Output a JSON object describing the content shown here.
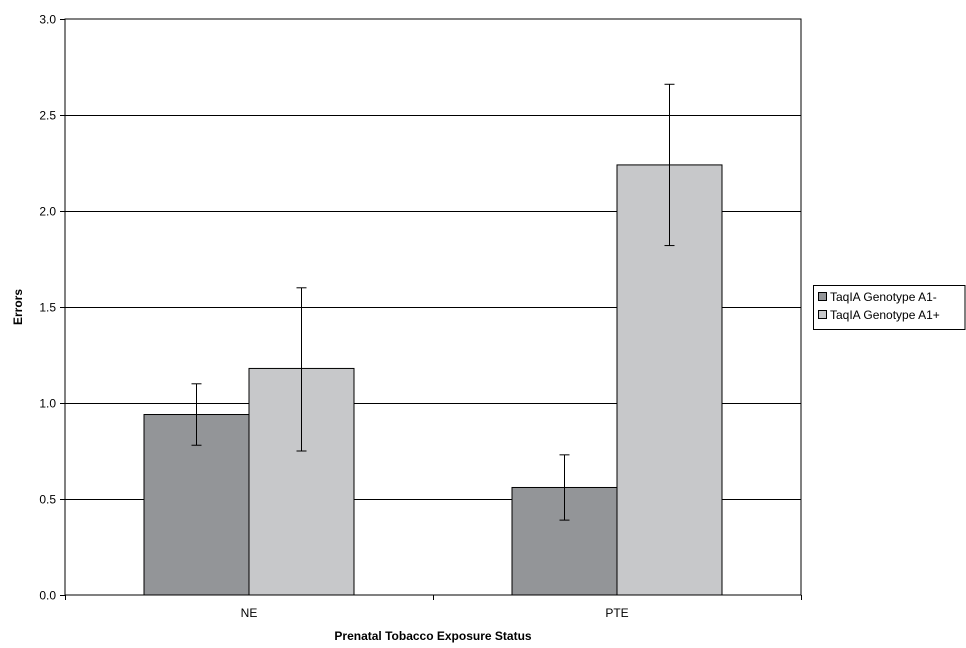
{
  "chart_data": {
    "type": "bar",
    "title": "",
    "xlabel": "Prenatal Tobacco Exposure Status",
    "ylabel": "Errors",
    "categories": [
      "NE",
      "PTE"
    ],
    "ylim": [
      0,
      3.0
    ],
    "yticks": [
      "0.0",
      "0.5",
      "1.0",
      "1.5",
      "2.0",
      "2.5",
      "3.0"
    ],
    "grid": true,
    "legend_position": "right",
    "series": [
      {
        "name": "TaqIA Genotype A1-",
        "color": "#939598",
        "values": [
          0.94,
          0.56
        ],
        "error_low": [
          0.78,
          0.39
        ],
        "error_high": [
          1.1,
          0.73
        ]
      },
      {
        "name": "TaqIA Genotype A1+",
        "color": "#c7c8ca",
        "values": [
          1.18,
          2.24
        ],
        "error_low": [
          0.75,
          1.82
        ],
        "error_high": [
          1.6,
          2.66
        ]
      }
    ]
  }
}
